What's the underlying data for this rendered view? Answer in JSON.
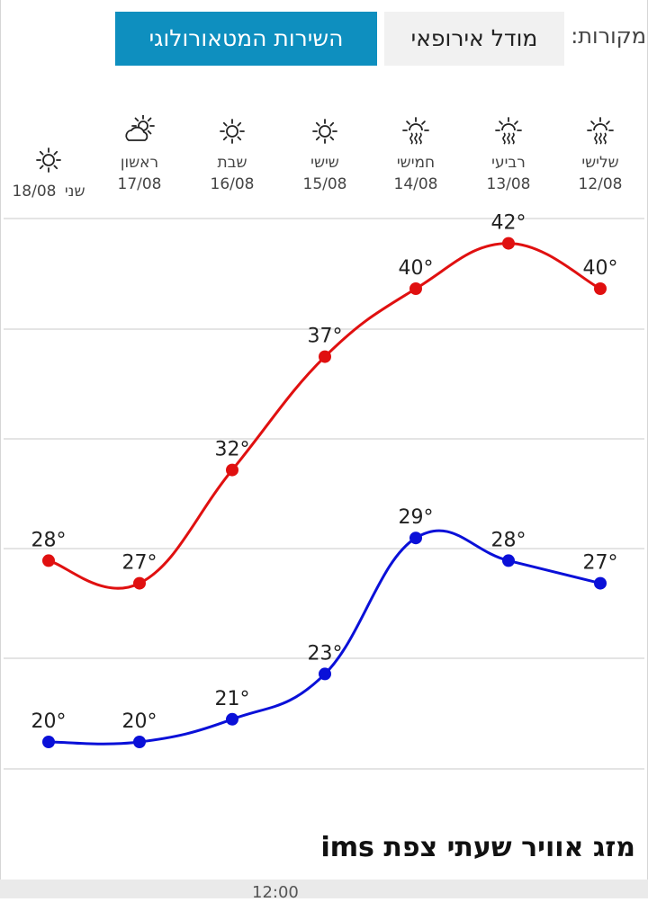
{
  "sources": {
    "label": "מקורות:",
    "options": [
      {
        "label": "מודל אירופאי",
        "selected": false
      },
      {
        "label": "השירות המטאורולוגי",
        "selected": true
      }
    ]
  },
  "days": [
    {
      "name": "שלישי",
      "date": "12/08",
      "icon": "haze-sun-icon"
    },
    {
      "name": "רביעי",
      "date": "13/08",
      "icon": "haze-sun-icon"
    },
    {
      "name": "חמישי",
      "date": "14/08",
      "icon": "haze-sun-icon"
    },
    {
      "name": "שישי",
      "date": "15/08",
      "icon": "sun-icon"
    },
    {
      "name": "שבת",
      "date": "16/08",
      "icon": "sun-icon"
    },
    {
      "name": "ראשון",
      "date": "17/08",
      "icon": "partly-cloudy-icon"
    },
    {
      "name": "שני",
      "date": "18/08",
      "icon": "sun-icon"
    }
  ],
  "chart_data": {
    "type": "line",
    "categories": [
      "12/08",
      "13/08",
      "14/08",
      "15/08",
      "16/08",
      "17/08",
      "18/08"
    ],
    "series": [
      {
        "values": [
          40,
          42,
          40,
          37,
          32,
          27,
          28
        ],
        "color": "#e01010"
      },
      {
        "values": [
          27,
          28,
          29,
          23,
          21,
          20,
          20
        ],
        "color": "#0a10d8"
      }
    ],
    "value_suffix": "°",
    "grid": true
  },
  "section": {
    "title": "מזג אוויר שעתי צפת ims",
    "peek_text": "12:00"
  },
  "colors": {
    "accent": "#0e8fbf",
    "high": "#e01010",
    "low": "#0a10d8"
  }
}
